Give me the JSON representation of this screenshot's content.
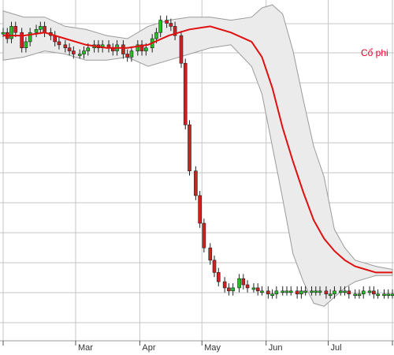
{
  "chart_data": {
    "type": "candlestick",
    "title": "",
    "xlabel": "",
    "ylabel": "",
    "annotation": "Cổ phi",
    "x_ticks": [
      {
        "label": "",
        "day": 0
      },
      {
        "label": "Mar",
        "day": 35
      },
      {
        "label": "Apr",
        "day": 66
      },
      {
        "label": "May",
        "day": 96
      },
      {
        "label": "Jun",
        "day": 127
      },
      {
        "label": "Jul",
        "day": 157
      },
      {
        "label": "",
        "day": 188
      }
    ],
    "x_range": [
      0,
      188
    ],
    "y_range": [
      0,
      100
    ],
    "grid": true,
    "colors": {
      "up": "#22c022",
      "down": "#d02020",
      "ma": "#e01010",
      "band_fill": "#ebebeb",
      "band_stroke": "#9a9a9a",
      "grid": "#c6c6c6",
      "annotation": "#e8002a"
    },
    "series": [
      {
        "name": "",
        "type": "candles",
        "days": [
          0,
          2,
          4,
          6,
          9,
          11,
          13,
          16,
          18,
          20,
          23,
          25,
          27,
          30,
          32,
          34,
          37,
          39,
          41,
          44,
          46,
          48,
          51,
          53,
          55,
          58,
          60,
          62,
          65,
          67,
          69,
          72,
          74,
          76,
          79,
          81,
          83,
          86,
          88,
          90,
          93,
          95,
          97,
          100,
          102,
          104,
          107,
          109,
          111,
          114,
          116,
          118,
          121,
          123,
          125,
          128,
          130,
          132,
          135,
          137,
          139,
          142,
          144,
          146,
          149,
          151,
          153,
          156,
          158,
          160,
          163,
          165,
          167,
          170,
          172,
          174,
          177,
          179,
          181,
          184,
          186,
          188
        ],
        "values": [
          92,
          90,
          94,
          92,
          87,
          89,
          92,
          93,
          94,
          92,
          91,
          89,
          88,
          87,
          86,
          85,
          85,
          86,
          87,
          88,
          87,
          88,
          87,
          86,
          88,
          85,
          84,
          86,
          88,
          86,
          87,
          90,
          92,
          96,
          95,
          94,
          91,
          82,
          62,
          47,
          39,
          30,
          22,
          18,
          14,
          11,
          9,
          8,
          9,
          12,
          10,
          9,
          9,
          8,
          8,
          7,
          7,
          8,
          8,
          8,
          8,
          7,
          8,
          8,
          8,
          8,
          8,
          7,
          7,
          8,
          8,
          8,
          7,
          7,
          7,
          8,
          8,
          7,
          7,
          7,
          7,
          7
        ]
      },
      {
        "name": "",
        "type": "moving_average",
        "days": [
          0,
          10,
          20,
          30,
          40,
          50,
          60,
          70,
          80,
          90,
          100,
          110,
          120,
          125,
          130,
          135,
          140,
          145,
          150,
          155,
          160,
          165,
          170,
          175,
          180,
          188
        ],
        "values": [
          91,
          91,
          92,
          90,
          88,
          87,
          87,
          88,
          91,
          93,
          94,
          92,
          89,
          84,
          74,
          61,
          50,
          40,
          31,
          25,
          21,
          18,
          16,
          15,
          14,
          14
        ]
      },
      {
        "name": "",
        "type": "bollinger_upper",
        "days": [
          0,
          10,
          20,
          30,
          40,
          50,
          60,
          70,
          80,
          90,
          100,
          110,
          120,
          125,
          130,
          135,
          140,
          145,
          150,
          155,
          160,
          165,
          170,
          175,
          180,
          188
        ],
        "values": [
          99,
          97,
          97,
          94,
          93,
          91,
          90,
          94,
          96,
          97,
          97,
          96,
          97,
          100,
          101,
          98,
          86,
          70,
          55,
          45,
          28,
          22,
          18,
          17,
          16,
          15
        ]
      },
      {
        "name": "",
        "type": "bollinger_lower",
        "days": [
          0,
          10,
          20,
          30,
          40,
          50,
          60,
          70,
          80,
          90,
          100,
          110,
          120,
          125,
          130,
          135,
          140,
          145,
          150,
          155,
          160,
          165,
          170,
          175,
          180,
          188
        ],
        "values": [
          83,
          84,
          86,
          85,
          83,
          83,
          84,
          81,
          83,
          85,
          87,
          88,
          81,
          72,
          55,
          38,
          20,
          11,
          4,
          3,
          6,
          9,
          11,
          12,
          13,
          13
        ]
      }
    ]
  }
}
